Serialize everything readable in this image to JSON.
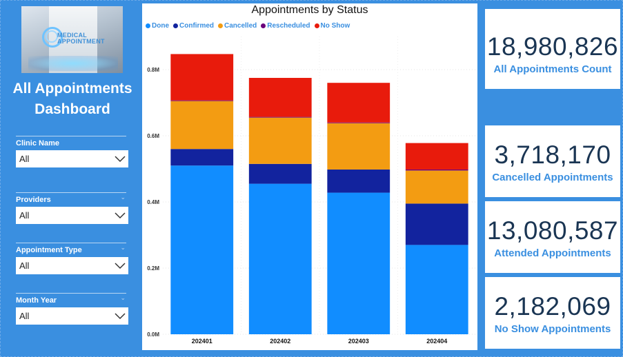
{
  "dashboard": {
    "title": "All Appointments Dashboard",
    "logo_text_1": "MEDICAL",
    "logo_text_2": "APPOINTMENT"
  },
  "filters": [
    {
      "label": "Clinic Name",
      "value": "All"
    },
    {
      "label": "Providers",
      "value": "All"
    },
    {
      "label": "Appointment Type",
      "value": "All"
    },
    {
      "label": "Month Year",
      "value": "All"
    }
  ],
  "kpis": [
    {
      "value": "18,980,826",
      "caption": "All Appointments Count"
    },
    {
      "value": "3,718,170",
      "caption": "Cancelled Appointments"
    },
    {
      "value": "13,080,587",
      "caption": "Attended Appointments"
    },
    {
      "value": "2,182,069",
      "caption": "No Show Appointments"
    }
  ],
  "colors": {
    "Done": "#118dff",
    "Confirmed": "#12239e",
    "Cancelled": "#f39c12",
    "Rescheduled": "#6b007b",
    "No Show": "#e81b0c"
  },
  "chart_data": {
    "type": "bar",
    "stacked": true,
    "title": "Appointments by Status",
    "categories": [
      "202401",
      "202402",
      "202403",
      "202404"
    ],
    "series": [
      {
        "name": "Done",
        "values": [
          0.51,
          0.455,
          0.428,
          0.27
        ]
      },
      {
        "name": "Confirmed",
        "values": [
          0.05,
          0.06,
          0.07,
          0.125
        ]
      },
      {
        "name": "Cancelled",
        "values": [
          0.145,
          0.14,
          0.14,
          0.1
        ]
      },
      {
        "name": "Rescheduled",
        "values": [
          0.002,
          0.002,
          0.002,
          0.003
        ]
      },
      {
        "name": "No Show",
        "values": [
          0.14,
          0.118,
          0.12,
          0.08
        ]
      }
    ],
    "y_ticks": [
      "0.0M",
      "0.2M",
      "0.4M",
      "0.6M",
      "0.8M"
    ],
    "y_tick_values": [
      0,
      0.2,
      0.4,
      0.6,
      0.8
    ],
    "ylim": [
      0,
      0.9
    ],
    "y_unit": "M",
    "legend_position": "top-left",
    "grid": true
  }
}
